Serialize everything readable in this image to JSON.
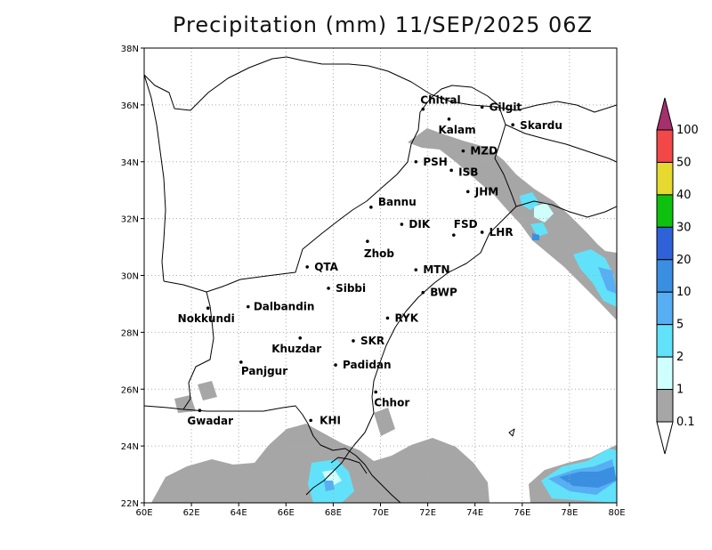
{
  "title": "Precipitation (mm) 11/SEP/2025 06Z",
  "map": {
    "lon_range": [
      60,
      80
    ],
    "lat_range": [
      22,
      38
    ],
    "x_ticks": [
      "60E",
      "62E",
      "64E",
      "66E",
      "68E",
      "70E",
      "72E",
      "74E",
      "76E",
      "78E",
      "80E"
    ],
    "y_ticks": [
      "22N",
      "24N",
      "26N",
      "28N",
      "30N",
      "32N",
      "34N",
      "36N",
      "38N"
    ],
    "grid": "dotted"
  },
  "cities": [
    {
      "name": "Chitral",
      "lon": 71.8,
      "lat": 35.85
    },
    {
      "name": "Gilgit",
      "lon": 74.3,
      "lat": 35.92
    },
    {
      "name": "Kalam",
      "lon": 72.9,
      "lat": 35.5
    },
    {
      "name": "Skardu",
      "lon": 75.6,
      "lat": 35.3
    },
    {
      "name": "MZD",
      "lon": 73.5,
      "lat": 34.38
    },
    {
      "name": "PSH",
      "lon": 71.5,
      "lat": 34.0
    },
    {
      "name": "ISB",
      "lon": 73.0,
      "lat": 33.7
    },
    {
      "name": "JHM",
      "lon": 73.7,
      "lat": 32.95
    },
    {
      "name": "Bannu",
      "lon": 69.6,
      "lat": 32.4
    },
    {
      "name": "DIK",
      "lon": 70.9,
      "lat": 31.8
    },
    {
      "name": "FSD",
      "lon": 73.1,
      "lat": 31.42
    },
    {
      "name": "LHR",
      "lon": 74.3,
      "lat": 31.52
    },
    {
      "name": "Zhob",
      "lon": 69.45,
      "lat": 31.2
    },
    {
      "name": "QTA",
      "lon": 66.9,
      "lat": 30.3
    },
    {
      "name": "MTN",
      "lon": 71.5,
      "lat": 30.2
    },
    {
      "name": "Sibbi",
      "lon": 67.8,
      "lat": 29.55
    },
    {
      "name": "BWP",
      "lon": 71.8,
      "lat": 29.4
    },
    {
      "name": "Nokkundi",
      "lon": 62.7,
      "lat": 28.85
    },
    {
      "name": "Dalbandin",
      "lon": 64.4,
      "lat": 28.9
    },
    {
      "name": "RYK",
      "lon": 70.3,
      "lat": 28.5
    },
    {
      "name": "Khuzdar",
      "lon": 66.6,
      "lat": 27.8
    },
    {
      "name": "SKR",
      "lon": 68.85,
      "lat": 27.7
    },
    {
      "name": "Panjgur",
      "lon": 64.1,
      "lat": 26.95
    },
    {
      "name": "Padidan",
      "lon": 68.1,
      "lat": 26.85
    },
    {
      "name": "Chhor",
      "lon": 69.8,
      "lat": 25.9
    },
    {
      "name": "KHI",
      "lon": 67.05,
      "lat": 24.9
    },
    {
      "name": "Gwadar",
      "lon": 62.35,
      "lat": 25.25
    }
  ],
  "colorbar": {
    "labels": [
      "0.1",
      "1",
      "2",
      "5",
      "10",
      "20",
      "30",
      "40",
      "50",
      "100"
    ],
    "colors": [
      "#a6a6a6",
      "#cffffd",
      "#61e2fa",
      "#58aef3",
      "#3a8fe0",
      "#2f62d8",
      "#0fc10f",
      "#e6d930",
      "#f24848",
      "#a5306e"
    ]
  }
}
